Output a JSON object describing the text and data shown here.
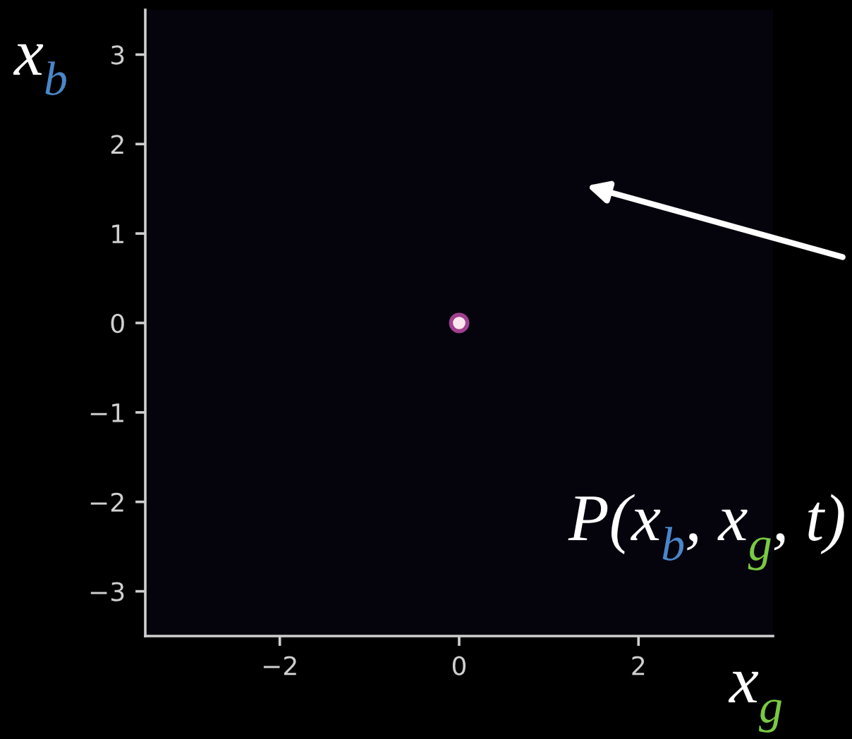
{
  "chart_data": {
    "type": "scatter",
    "x": [
      0
    ],
    "series": [
      {
        "color": "#fde6ee",
        "values": [
          0
        ]
      }
    ],
    "xlabel": "x$_{g}$",
    "ylabel": "x$_{b}$",
    "annotations": [
      "P(x$_{b}$, x$_{g}$, t)"
    ],
    "xlim": [
      -3.5,
      3.5
    ],
    "ylim": [
      -3.5,
      3.5
    ],
    "xticks": [
      -2,
      0,
      2
    ],
    "yticks": [
      -3,
      -2,
      -1,
      0,
      1,
      2,
      3
    ],
    "marker": "circle"
  }
}
